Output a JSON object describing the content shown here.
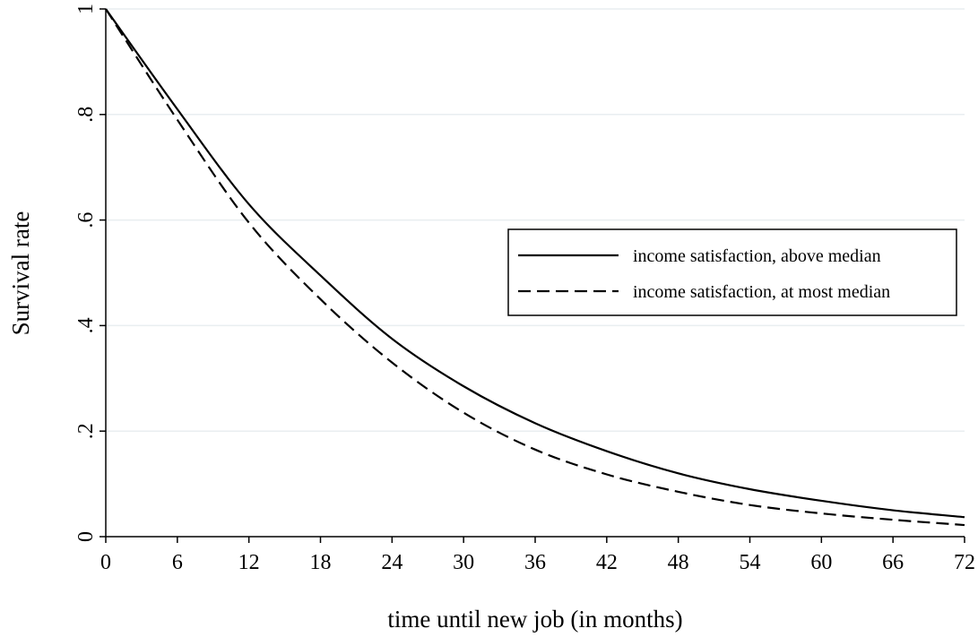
{
  "chart_data": {
    "type": "line",
    "title": "",
    "xlabel": "time until new job (in months)",
    "ylabel": "Survival rate",
    "xlim": [
      0,
      72
    ],
    "ylim": [
      0,
      1
    ],
    "x_ticks": [
      0,
      6,
      12,
      18,
      24,
      30,
      36,
      42,
      48,
      54,
      60,
      66,
      72
    ],
    "x_tick_labels": [
      "0",
      "6",
      "12",
      "18",
      "24",
      "30",
      "36",
      "42",
      "48",
      "54",
      "60",
      "66",
      "72"
    ],
    "y_ticks": [
      0,
      0.2,
      0.4,
      0.6,
      0.8,
      1
    ],
    "y_tick_labels": [
      "0",
      ".2",
      ".4",
      ".6",
      ".8",
      "1"
    ],
    "grid": "horizontal",
    "legend_position": "right",
    "x": [
      0,
      6,
      12,
      18,
      24,
      30,
      36,
      42,
      48,
      54,
      60,
      66,
      72
    ],
    "series": [
      {
        "name": "income satisfaction, above median",
        "style": "solid",
        "color": "#000000",
        "values": [
          1.0,
          0.81,
          0.63,
          0.495,
          0.375,
          0.285,
          0.215,
          0.162,
          0.12,
          0.09,
          0.068,
          0.05,
          0.037
        ]
      },
      {
        "name": "income satisfaction, at most median",
        "style": "dashed",
        "color": "#000000",
        "values": [
          1.0,
          0.79,
          0.595,
          0.45,
          0.33,
          0.235,
          0.165,
          0.118,
          0.085,
          0.06,
          0.044,
          0.032,
          0.022
        ]
      }
    ]
  }
}
